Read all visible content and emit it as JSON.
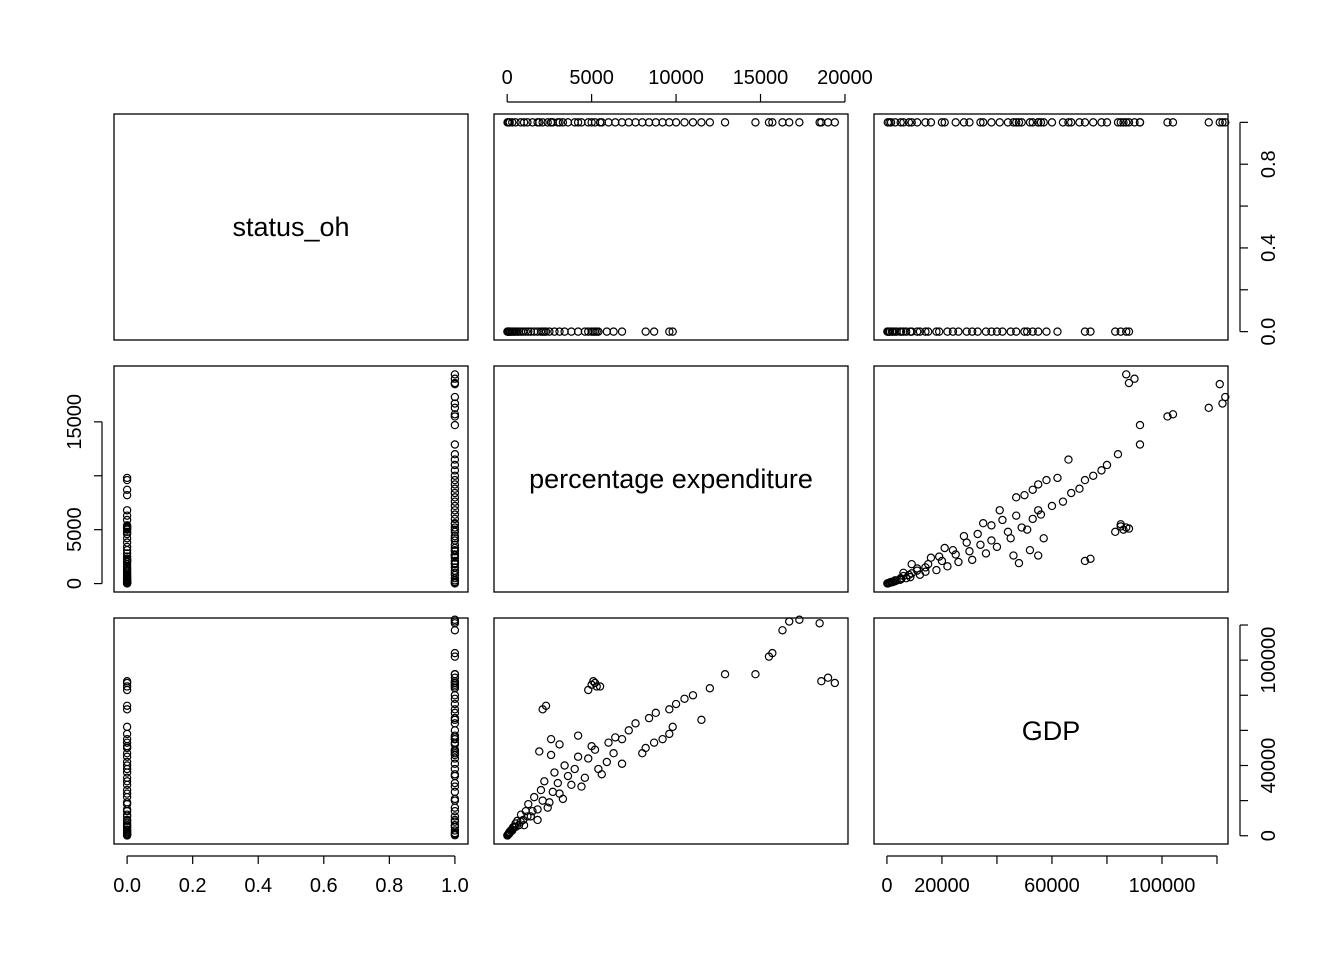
{
  "chart_data": {
    "type": "pairs",
    "color": "#000000",
    "variables": [
      {
        "name": "status_oh",
        "lim": [
          -0.04,
          1.04
        ],
        "xticks": [
          {
            "value": 0,
            "label": "0.0"
          },
          0.2,
          0.4,
          0.6,
          0.8,
          {
            "value": 1,
            "label": "1.0"
          }
        ],
        "yticks": [
          {
            "value": 0,
            "label": "0.0"
          },
          {
            "value": 0.2,
            "label": null
          },
          0.4,
          {
            "value": 0.6,
            "label": null
          },
          0.8,
          {
            "value": 1,
            "label": null
          }
        ],
        "values": [
          0,
          0,
          0,
          0,
          0,
          0,
          0,
          0,
          0,
          0,
          0,
          0,
          0,
          0,
          0,
          0,
          0,
          0,
          0,
          0,
          0,
          0,
          0,
          0,
          0,
          0,
          0,
          0,
          0,
          0,
          0,
          0,
          0,
          0,
          0,
          0,
          0,
          0,
          0,
          0,
          0,
          0,
          0,
          0,
          1,
          1,
          1,
          1,
          1,
          1,
          1,
          1,
          1,
          1,
          1,
          1,
          1,
          1,
          1,
          1,
          1,
          1,
          1,
          1,
          1,
          1,
          1,
          1,
          1,
          1,
          1,
          1,
          1,
          1,
          1,
          1,
          1,
          1,
          1,
          1,
          1,
          1,
          1,
          1,
          1,
          1,
          1,
          1,
          1,
          1,
          1,
          1,
          1,
          1,
          1,
          1,
          1,
          1
        ]
      },
      {
        "name": "percentage expenditure",
        "lim": [
          -780,
          20180
        ],
        "xticks": [
          0,
          5000,
          10000,
          15000,
          20000
        ],
        "yticks": [
          0,
          5000,
          {
            "value": 10000,
            "label": null
          },
          15000
        ],
        "values": [
          12,
          35,
          60,
          90,
          120,
          150,
          210,
          280,
          350,
          420,
          500,
          600,
          700,
          820,
          950,
          1100,
          1250,
          1400,
          1600,
          1800,
          2000,
          2200,
          2500,
          2800,
          3100,
          3400,
          3800,
          4200,
          4600,
          5000,
          5400,
          5900,
          6300,
          6800,
          2300,
          2100,
          5200,
          5300,
          8200,
          8700,
          9600,
          9800,
          5100,
          4800,
          20,
          80,
          150,
          300,
          500,
          800,
          1000,
          1200,
          1500,
          1800,
          2100,
          2400,
          2700,
          3000,
          3300,
          3600,
          4000,
          4400,
          4800,
          5200,
          5600,
          6000,
          6400,
          6800,
          7200,
          7600,
          8000,
          8400,
          8800,
          9200,
          9600,
          10000,
          10500,
          11000,
          11500,
          12000,
          12900,
          14700,
          15500,
          15700,
          16700,
          17300,
          18500,
          19400,
          18600,
          19000,
          5500,
          5000,
          3100,
          2600,
          4200,
          1900,
          2600,
          16300
        ]
      },
      {
        "name": "GDP",
        "lim": [
          -4700,
          124000
        ],
        "xticks": [
          0,
          20000,
          {
            "value": 40000,
            "label": null
          },
          60000,
          {
            "value": 80000,
            "label": null
          },
          100000,
          {
            "value": 120000,
            "label": null
          }
        ],
        "yticks": [
          0,
          {
            "value": 20000,
            "label": null
          },
          40000,
          {
            "value": 60000,
            "label": null
          },
          {
            "value": 80000,
            "label": null
          },
          100000,
          {
            "value": 120000,
            "label": null
          }
        ],
        "values": [
          150,
          420,
          800,
          1100,
          1800,
          2200,
          2900,
          3500,
          4800,
          5200,
          7000,
          8500,
          6000,
          12000,
          9000,
          14000,
          18000,
          11000,
          22000,
          15000,
          26000,
          31000,
          19000,
          36000,
          24000,
          40000,
          29000,
          45000,
          33000,
          51000,
          38000,
          42000,
          47000,
          55000,
          74000,
          72000,
          87000,
          85000,
          50000,
          53000,
          58000,
          62000,
          88000,
          83000,
          300,
          900,
          1500,
          3000,
          5000,
          8000,
          6000,
          11000,
          14000,
          9000,
          20000,
          16000,
          25000,
          30000,
          21000,
          34000,
          38000,
          28000,
          44000,
          49000,
          35000,
          53000,
          56000,
          41000,
          60000,
          64000,
          47000,
          67000,
          70000,
          55000,
          72000,
          75000,
          78000,
          80000,
          66000,
          84000,
          92000,
          92000,
          102000,
          104000,
          122000,
          123000,
          121000,
          87000,
          88000,
          90000,
          85000,
          86000,
          52000,
          46000,
          57000,
          48000,
          55000,
          117000
        ]
      }
    ]
  }
}
